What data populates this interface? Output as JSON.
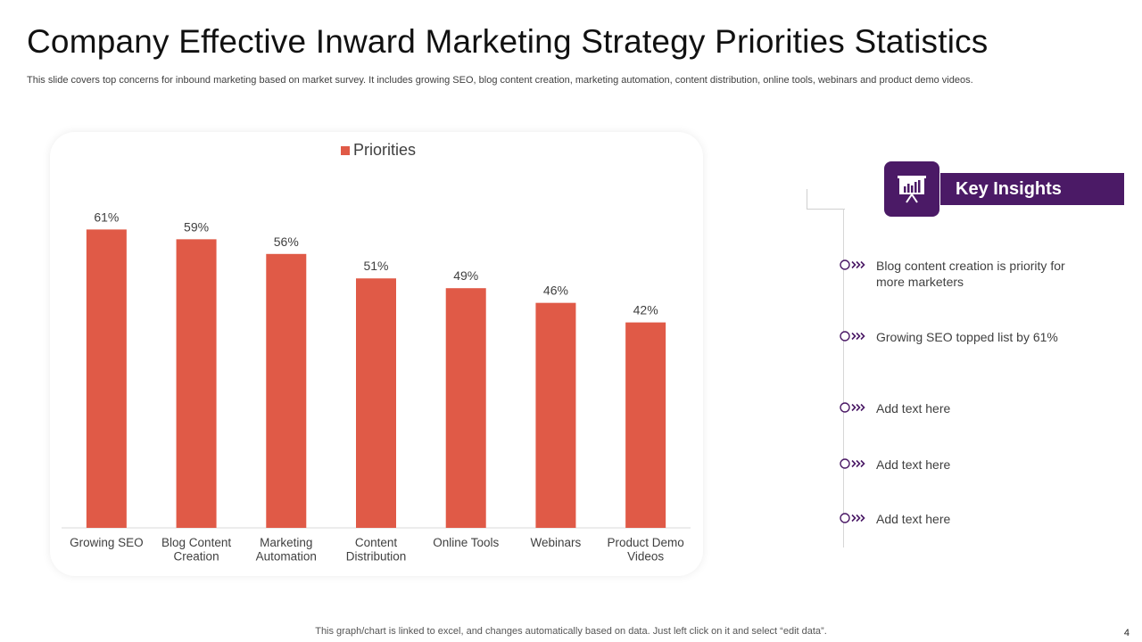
{
  "slide": {
    "title": "Company Effective Inward  Marketing Strategy Priorities Statistics",
    "subtitle": "This slide covers top concerns for inbound marketing based on market survey. It includes growing SEO, blog content creation, marketing automation, content distribution, online tools, webinars and product demo videos.",
    "footer": "This graph/chart is linked to excel,  and changes automatically based on data. Just left click on it and select “edit data”.",
    "page_number": "4"
  },
  "chart_data": {
    "type": "bar",
    "title": "",
    "xlabel": "",
    "ylabel": "",
    "legend": "top-center",
    "grid": false,
    "ylim": [
      0,
      70
    ],
    "categories": [
      [
        "Growing SEO"
      ],
      [
        "Blog Content",
        "Creation"
      ],
      [
        "Marketing",
        "Automation"
      ],
      [
        "Content",
        "Distribution"
      ],
      [
        "Online Tools"
      ],
      [
        "Webinars"
      ],
      [
        "Product Demo",
        "Videos"
      ]
    ],
    "series": [
      {
        "name": "Priorities",
        "values": [
          61,
          59,
          56,
          51,
          49,
          46,
          42
        ],
        "labels": [
          "61%",
          "59%",
          "56%",
          "51%",
          "49%",
          "46%",
          "42%"
        ],
        "color": "#e05a47"
      }
    ]
  },
  "insights": {
    "header": "Key Insights",
    "icon": "presentation-chart-icon",
    "accent_color": "#4b1a66",
    "items": [
      {
        "text": "Blog content creation is priority for more marketers"
      },
      {
        "text": "Growing SEO topped list by 61%"
      },
      {
        "text": "Add text here"
      },
      {
        "text": "Add text here"
      },
      {
        "text": "Add text here"
      }
    ]
  }
}
